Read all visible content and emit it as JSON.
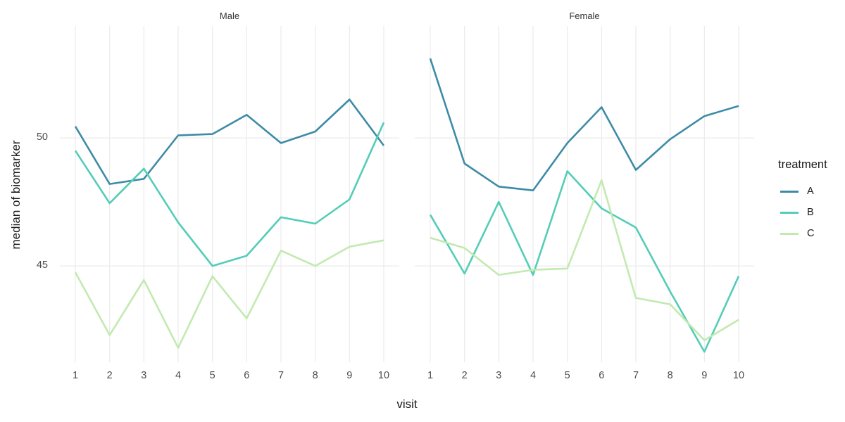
{
  "facet_titles": {
    "male": "Male",
    "female": "Female"
  },
  "axis": {
    "x_title": "visit",
    "y_title": "median of biomarker"
  },
  "legend": {
    "title": "treatment",
    "position": "right",
    "items": [
      {
        "label": "A",
        "color": "#3e8ba6"
      },
      {
        "label": "B",
        "color": "#53cdb8"
      },
      {
        "label": "C",
        "color": "#c2eab0"
      }
    ]
  },
  "style_colors": {
    "background": "#ffffff",
    "gridline": "#ebebeb",
    "tick_text": "#4d4d4d"
  },
  "chart_data": {
    "type": "line",
    "x": [
      1,
      2,
      3,
      4,
      5,
      6,
      7,
      8,
      9,
      10
    ],
    "xlabel": "visit",
    "ylabel": "median of biomarker",
    "yticks": [
      45,
      50
    ],
    "ylim": [
      41.24,
      54.37
    ],
    "grid": "major-only",
    "legend_position": "right",
    "series_colors": {
      "A": "#3e8ba6",
      "B": "#53cdb8",
      "C": "#c2eab0"
    },
    "facets": [
      {
        "label": "Male",
        "series": [
          {
            "name": "A",
            "values": [
              50.45,
              48.2,
              48.4,
              50.1,
              50.15,
              50.9,
              49.8,
              50.25,
              51.5,
              49.7
            ]
          },
          {
            "name": "B",
            "values": [
              49.5,
              47.45,
              48.8,
              46.7,
              45.0,
              45.4,
              46.9,
              46.65,
              47.6,
              50.6
            ]
          },
          {
            "name": "C",
            "values": [
              44.75,
              42.3,
              44.45,
              41.8,
              44.6,
              42.95,
              45.6,
              45.0,
              45.75,
              46.0
            ]
          }
        ]
      },
      {
        "label": "Female",
        "series": [
          {
            "name": "A",
            "values": [
              53.1,
              49.0,
              48.1,
              47.95,
              49.8,
              51.2,
              48.75,
              49.95,
              50.85,
              51.25
            ]
          },
          {
            "name": "B",
            "values": [
              47.0,
              44.7,
              47.5,
              44.65,
              48.7,
              47.25,
              46.5,
              44.0,
              41.65,
              44.6
            ]
          },
          {
            "name": "C",
            "values": [
              46.1,
              45.7,
              44.65,
              44.85,
              44.9,
              48.35,
              43.75,
              43.5,
              42.1,
              42.9
            ]
          }
        ]
      }
    ]
  }
}
